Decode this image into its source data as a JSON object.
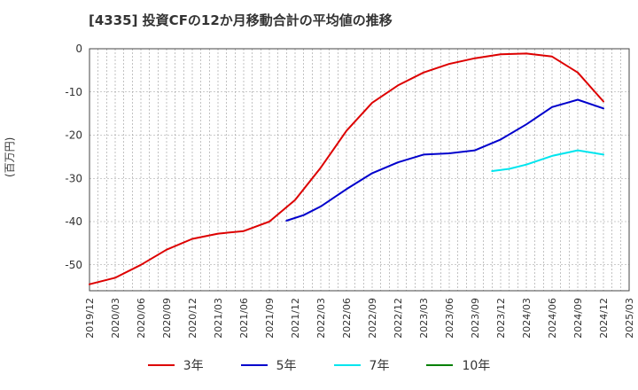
{
  "header": {
    "title": "[4335]  投資CFの12か月移動合計の平均値の推移"
  },
  "axes": {
    "ylabel": "(百万円)"
  },
  "chart_data": {
    "type": "line",
    "title": "[4335]  投資CFの12か月移動合計の平均値の推移",
    "xlabel": "",
    "ylabel": "(百万円)",
    "xlim": [
      "2019/12",
      "2025/03"
    ],
    "ylim": [
      -56,
      0
    ],
    "yticks": [
      0,
      -10,
      -20,
      -30,
      -40,
      -50
    ],
    "xticks": [
      "2019/12",
      "2020/03",
      "2020/06",
      "2020/09",
      "2020/12",
      "2021/03",
      "2021/06",
      "2021/09",
      "2021/12",
      "2022/03",
      "2022/06",
      "2022/09",
      "2022/12",
      "2023/03",
      "2023/06",
      "2023/09",
      "2023/12",
      "2024/03",
      "2024/06",
      "2024/09",
      "2024/12",
      "2025/03"
    ],
    "grid": true,
    "legend_position": "bottom",
    "series": [
      {
        "name": "3年",
        "color": "#dd0000",
        "x": [
          "2019/12",
          "2020/03",
          "2020/06",
          "2020/09",
          "2020/12",
          "2021/03",
          "2021/06",
          "2021/09",
          "2021/12",
          "2022/03",
          "2022/06",
          "2022/09",
          "2022/12",
          "2023/03",
          "2023/06",
          "2023/09",
          "2023/12",
          "2024/03",
          "2024/06",
          "2024/09",
          "2024/12"
        ],
        "values": [
          -54.5,
          -53,
          -50,
          -46.5,
          -44,
          -42.8,
          -42.2,
          -40,
          -35,
          -27.5,
          -19,
          -12.5,
          -8.5,
          -5.5,
          -3.5,
          -2.2,
          -1.3,
          -1.1,
          -1.8,
          -5.5,
          -12.2
        ]
      },
      {
        "name": "5年",
        "color": "#0000cc",
        "x": [
          "2021/11",
          "2022/01",
          "2022/03",
          "2022/06",
          "2022/09",
          "2022/12",
          "2023/03",
          "2023/06",
          "2023/09",
          "2023/12",
          "2024/03",
          "2024/06",
          "2024/09",
          "2024/12"
        ],
        "values": [
          -39.8,
          -38.5,
          -36.5,
          -32.5,
          -28.8,
          -26.3,
          -24.5,
          -24.2,
          -23.5,
          -21,
          -17.5,
          -13.5,
          -11.8,
          -13.8
        ]
      },
      {
        "name": "7年",
        "color": "#00e5ee",
        "x": [
          "2023/11",
          "2024/01",
          "2024/03",
          "2024/06",
          "2024/09",
          "2024/12"
        ],
        "values": [
          -28.3,
          -27.8,
          -26.8,
          -24.8,
          -23.5,
          -24.5
        ]
      },
      {
        "name": "10年",
        "color": "#008000",
        "x": [],
        "values": []
      }
    ]
  }
}
